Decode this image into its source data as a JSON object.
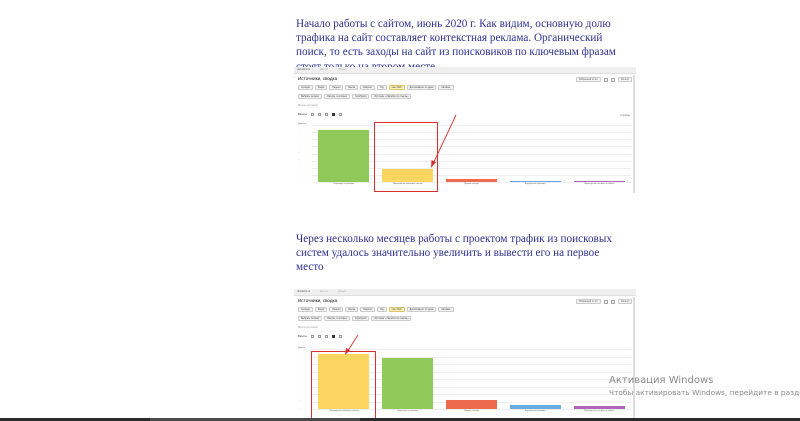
{
  "paragraphs": {
    "first": "Начало работы с сайтом, июнь 2020 г. Как видим, основную долю трафика на сайт составляет контекстная реклама. Органический поиск, то есть заходы на сайт из поисковиков по ключевым фразам  стоят только на втором месте.",
    "second": "Через несколько месяцев работы с проектом трафик из поисковых систем удалось значительно увеличить и вывести его на первое место"
  },
  "report": {
    "title": "Источники, сводка",
    "topbar": [
      "domainfo.ru",
      "Доступ",
      "Объект"
    ],
    "tools": [
      "Избранный отчёт",
      "Фильтр"
    ],
    "filters": [
      "Сегодня",
      "Вчера",
      "Неделя",
      "Месяц",
      "Квартал",
      "Год",
      "июн 2020",
      "Детализация: по дням",
      "Автомат."
    ],
    "segment": [
      "Выбрать сегмент",
      "Визиты, в которых",
      "Атрибуция",
      "Источник: «Перейти по ссылке»"
    ],
    "visits_label": "Визиты источник",
    "group_label": "Визиты",
    "right_label": "Столбцы",
    "y_unit": "Визиты"
  },
  "chart_data": [
    {
      "type": "bar",
      "title": "",
      "categories": [
        "Переходы по рекламе",
        "Переходы из поисковых систем",
        "Прямые заходы",
        "Внутренние переходы",
        "Переходы по ссылкам на сайтах"
      ],
      "values": [
        100,
        25,
        5,
        2,
        2
      ],
      "colors": [
        "#8ec95a",
        "#fdd662",
        "#ee6a4f",
        "#6aacdf",
        "#b065b8"
      ],
      "ylim": [
        0,
        110
      ],
      "grid": true,
      "highlighted_category": "Переходы из поисковых систем"
    },
    {
      "type": "bar",
      "title": "",
      "categories": [
        "Переходы из поисковых систем",
        "Переходы по рекламе",
        "Прямые заходы",
        "Внутренние переходы",
        "Переходы по ссылкам на сайтах"
      ],
      "values": [
        100,
        94,
        17,
        8,
        6
      ],
      "colors": [
        "#fdd662",
        "#8ec95a",
        "#ee6a4f",
        "#6aacdf",
        "#b065b8"
      ],
      "ylim": [
        0,
        110
      ],
      "grid": true,
      "highlighted_category": "Переходы из поисковых систем"
    }
  ],
  "watermark": {
    "line1": "Активация Windows",
    "line2": "Чтобы активировать Windows, перейдите в раздел \"Парам"
  }
}
